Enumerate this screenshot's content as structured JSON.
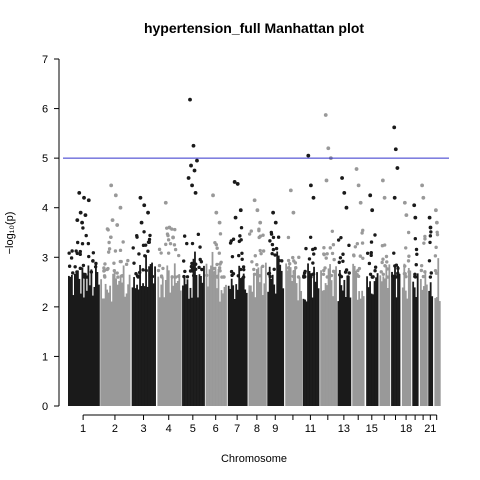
{
  "chart_data": {
    "type": "scatter",
    "title": "hypertension_full Manhattan plot",
    "xlabel": "Chromosome",
    "ylabel": "−log₁₀(p)",
    "ylim": [
      0,
      7
    ],
    "y_ticks": [
      0,
      1,
      2,
      3,
      4,
      5,
      6,
      7
    ],
    "x_tick_labels": [
      "1",
      "2",
      "3",
      "4",
      "5",
      "6",
      "7",
      "8",
      "9",
      "11",
      "13",
      "15",
      "18",
      "21"
    ],
    "significance_line": 5,
    "significance_line_color": "#3333cc",
    "series_colors": [
      "#1a1a1a",
      "#999999"
    ],
    "chromosomes": [
      {
        "chr": 1,
        "max_y": 4.3,
        "top_points": [
          4.3,
          4.2,
          4.15,
          3.9,
          3.85,
          3.75,
          3.7
        ]
      },
      {
        "chr": 2,
        "max_y": 4.45,
        "top_points": [
          4.45,
          4.25,
          4.0,
          3.75,
          3.65
        ]
      },
      {
        "chr": 3,
        "max_y": 4.2,
        "top_points": [
          4.2,
          4.05,
          3.9,
          3.7
        ]
      },
      {
        "chr": 4,
        "max_y": 4.1,
        "top_points": [
          4.1,
          3.6,
          3.4
        ]
      },
      {
        "chr": 5,
        "max_y": 6.18,
        "top_points": [
          6.18,
          5.25,
          4.95,
          4.85,
          4.75,
          4.6,
          4.45,
          4.3
        ]
      },
      {
        "chr": 6,
        "max_y": 4.25,
        "top_points": [
          4.25,
          3.9,
          3.7
        ]
      },
      {
        "chr": 7,
        "max_y": 4.52,
        "top_points": [
          4.52,
          4.48,
          3.95,
          3.8
        ]
      },
      {
        "chr": 8,
        "max_y": 4.15,
        "top_points": [
          4.15,
          3.95,
          3.7
        ]
      },
      {
        "chr": 9,
        "max_y": 3.9,
        "top_points": [
          3.9,
          3.7
        ]
      },
      {
        "chr": 10,
        "max_y": 4.35,
        "top_points": [
          4.35,
          3.9
        ]
      },
      {
        "chr": 11,
        "max_y": 5.05,
        "top_points": [
          5.05,
          4.45,
          4.2
        ]
      },
      {
        "chr": 12,
        "max_y": 5.87,
        "top_points": [
          5.87,
          5.2,
          5.0,
          4.55
        ]
      },
      {
        "chr": 13,
        "max_y": 4.6,
        "top_points": [
          4.6,
          4.3,
          4.0
        ]
      },
      {
        "chr": 14,
        "max_y": 4.78,
        "top_points": [
          4.78,
          4.45,
          4.1
        ]
      },
      {
        "chr": 15,
        "max_y": 4.25,
        "top_points": [
          4.25,
          3.95
        ]
      },
      {
        "chr": 16,
        "max_y": 4.55,
        "top_points": [
          4.55,
          4.2
        ]
      },
      {
        "chr": 17,
        "max_y": 5.62,
        "top_points": [
          5.62,
          5.18,
          4.8,
          4.2
        ]
      },
      {
        "chr": 18,
        "max_y": 4.1,
        "top_points": [
          4.1,
          3.85
        ]
      },
      {
        "chr": 19,
        "max_y": 4.05,
        "top_points": [
          4.05,
          3.8
        ]
      },
      {
        "chr": 20,
        "max_y": 4.45,
        "top_points": [
          4.45,
          4.2
        ]
      },
      {
        "chr": 21,
        "max_y": 3.8,
        "top_points": [
          3.8,
          3.6
        ]
      },
      {
        "chr": 22,
        "max_y": 3.95,
        "top_points": [
          3.95,
          3.7
        ]
      }
    ]
  }
}
